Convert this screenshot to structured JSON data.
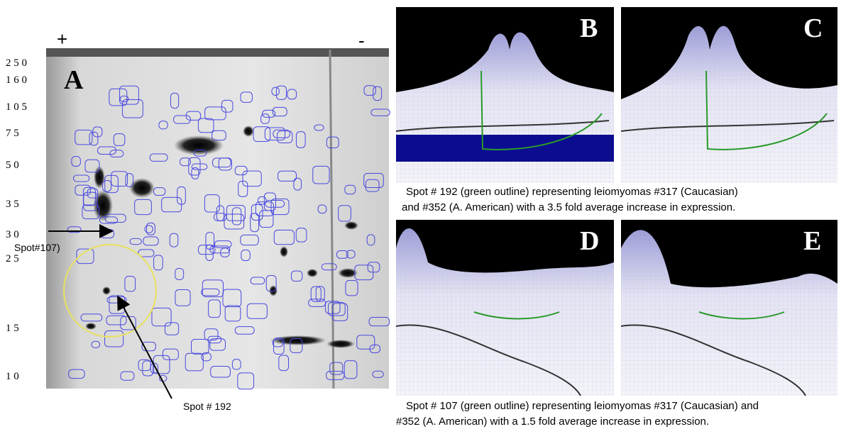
{
  "gel": {
    "plus": "+",
    "minus": "-",
    "panel_label": "A",
    "mw_labels": [
      "2 5 0",
      "1 6 0",
      "1 0 5",
      "7 5",
      "5 0",
      "3 5",
      "3 0",
      "2 5",
      "1 5",
      "1 0"
    ],
    "spot_107_label": "Spot#107)",
    "spot_192_label": "Spot # 192"
  },
  "panels": [
    {
      "label": "B"
    },
    {
      "label": "C"
    },
    {
      "label": "D"
    },
    {
      "label": "E"
    }
  ],
  "captions": [
    {
      "line1": "Spot # 192 (green outline) representing leiomyomas #317 (Caucasian)",
      "line2": "and #352 (A. American) with a 3.5 fold average increase in expression."
    },
    {
      "line1": "Spot # 107 (green outline) representing leiomyomas #317 (Caucasian) and",
      "line2": "#352 (A. American) with a 1.5 fold average increase in expression."
    }
  ]
}
